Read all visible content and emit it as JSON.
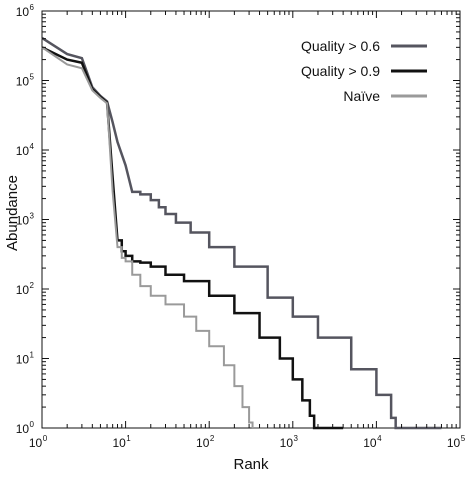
{
  "chart_data": {
    "type": "line",
    "xlabel": "Rank",
    "ylabel": "Abundance",
    "xscale": "log",
    "yscale": "log",
    "xlim": [
      1,
      100000
    ],
    "ylim": [
      1,
      1000000
    ],
    "grid": false,
    "legend_position": "top-right",
    "x_ticks": [
      {
        "base": "10",
        "exp": "0"
      },
      {
        "base": "10",
        "exp": "1"
      },
      {
        "base": "10",
        "exp": "2"
      },
      {
        "base": "10",
        "exp": "3"
      },
      {
        "base": "10",
        "exp": "4"
      },
      {
        "base": "10",
        "exp": "5"
      }
    ],
    "y_ticks": [
      {
        "base": "10",
        "exp": "0"
      },
      {
        "base": "10",
        "exp": "1"
      },
      {
        "base": "10",
        "exp": "2"
      },
      {
        "base": "10",
        "exp": "3"
      },
      {
        "base": "10",
        "exp": "4"
      },
      {
        "base": "10",
        "exp": "5"
      },
      {
        "base": "10",
        "exp": "6"
      }
    ],
    "series": [
      {
        "name": "Quality > 0.6",
        "color": "#55555f",
        "width": 2.5,
        "points": [
          [
            1,
            410000
          ],
          [
            2,
            240000
          ],
          [
            3,
            210000
          ],
          [
            4,
            80000
          ],
          [
            5,
            60000
          ],
          [
            6,
            50000
          ],
          [
            7,
            25000
          ],
          [
            8,
            13000
          ],
          [
            10,
            6000
          ],
          [
            12,
            2500
          ],
          [
            15,
            2300
          ],
          [
            20,
            1900
          ],
          [
            25,
            1500
          ],
          [
            30,
            1200
          ],
          [
            40,
            900
          ],
          [
            60,
            650
          ],
          [
            100,
            400
          ],
          [
            200,
            210
          ],
          [
            500,
            75
          ],
          [
            1000,
            40
          ],
          [
            2000,
            20
          ],
          [
            5000,
            7
          ],
          [
            10000,
            3
          ],
          [
            15000,
            1.4
          ],
          [
            17000,
            1
          ],
          [
            60000,
            1
          ]
        ]
      },
      {
        "name": "Quality > 0.9",
        "color": "#111111",
        "width": 2.5,
        "points": [
          [
            1,
            300000
          ],
          [
            2,
            200000
          ],
          [
            3,
            180000
          ],
          [
            4,
            75000
          ],
          [
            5,
            58000
          ],
          [
            6,
            48000
          ],
          [
            7,
            4000
          ],
          [
            8,
            500
          ],
          [
            9,
            350
          ],
          [
            10,
            300
          ],
          [
            12,
            250
          ],
          [
            15,
            240
          ],
          [
            20,
            210
          ],
          [
            30,
            160
          ],
          [
            50,
            130
          ],
          [
            100,
            80
          ],
          [
            200,
            45
          ],
          [
            400,
            20
          ],
          [
            700,
            10
          ],
          [
            1000,
            5
          ],
          [
            1300,
            2.5
          ],
          [
            1600,
            1.5
          ],
          [
            1800,
            1
          ],
          [
            4000,
            1
          ]
        ]
      },
      {
        "name": "Naïve",
        "color": "#9a9a9a",
        "width": 2,
        "points": [
          [
            1,
            300000
          ],
          [
            2,
            170000
          ],
          [
            3,
            150000
          ],
          [
            4,
            72000
          ],
          [
            5,
            56000
          ],
          [
            6,
            47000
          ],
          [
            7,
            2500
          ],
          [
            8,
            400
          ],
          [
            9,
            280
          ],
          [
            10,
            250
          ],
          [
            12,
            160
          ],
          [
            15,
            110
          ],
          [
            20,
            80
          ],
          [
            30,
            60
          ],
          [
            50,
            40
          ],
          [
            70,
            25
          ],
          [
            100,
            15
          ],
          [
            150,
            8
          ],
          [
            200,
            4
          ],
          [
            250,
            2
          ],
          [
            300,
            1.2
          ],
          [
            330,
            1
          ],
          [
            600,
            1
          ]
        ]
      }
    ]
  }
}
